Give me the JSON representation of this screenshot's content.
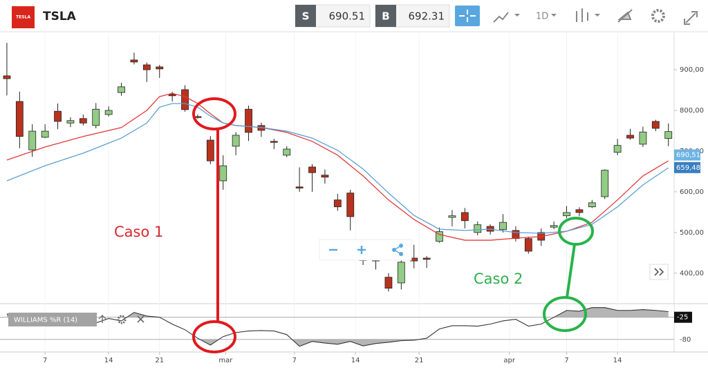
{
  "header": {
    "logo": "TESLA",
    "symbol": "TSLA",
    "sell_label": "S",
    "sell": "690.51",
    "buy_label": "B",
    "buy": "692.31",
    "timeframe": "1D"
  },
  "annotations": [
    "Caso 1",
    "Caso 2"
  ],
  "chart_data": {
    "type": "candlestick",
    "xlim": [
      -0.54,
      52.45
    ],
    "xticks": [
      {
        "value": 3,
        "label": "7"
      },
      {
        "value": 8,
        "label": "14"
      },
      {
        "value": 12,
        "label": "21"
      },
      {
        "value": 17.2,
        "label": "mar"
      },
      {
        "value": 22.6,
        "label": "7"
      },
      {
        "value": 27.4,
        "label": "14"
      },
      {
        "value": 32.4,
        "label": "21"
      },
      {
        "value": 39.5,
        "label": "apr"
      },
      {
        "value": 44,
        "label": "7"
      },
      {
        "value": 48,
        "label": "14"
      }
    ],
    "ylim": [
      325,
      990
    ],
    "yticks": [
      {
        "value": 900,
        "label": "900,00"
      },
      {
        "value": 800,
        "label": "800,00"
      },
      {
        "value": 700,
        "label": "700,00"
      },
      {
        "value": 600,
        "label": "600,00"
      },
      {
        "value": 500,
        "label": "500,00"
      },
      {
        "value": 400,
        "label": "400,00"
      }
    ],
    "up_color": "#92cc85",
    "down_color": "#b8321e",
    "open": [
      885,
      822,
      703,
      734,
      798,
      769,
      780,
      763,
      790,
      844,
      924,
      912,
      907,
      840,
      851,
      785,
      727,
      627,
      712,
      803,
      763,
      724,
      690,
      612,
      661,
      641,
      580,
      597,
      441,
      441,
      390,
      376,
      437,
      437,
      478,
      537,
      549,
      500,
      515,
      507,
      505,
      485,
      500,
      513,
      541,
      556,
      563,
      588,
      697,
      739,
      717,
      773,
      731
    ],
    "high": [
      966,
      846,
      766,
      766,
      817,
      783,
      790,
      818,
      810,
      868,
      942,
      918,
      912,
      846,
      862,
      790,
      737,
      690,
      747,
      812,
      770,
      730,
      712,
      660,
      668,
      655,
      595,
      605,
      460,
      478,
      400,
      445,
      470,
      442,
      512,
      555,
      560,
      527,
      520,
      545,
      515,
      490,
      510,
      527,
      565,
      562,
      580,
      655,
      730,
      755,
      760,
      777,
      768
    ],
    "low": [
      837,
      707,
      686,
      732,
      754,
      759,
      763,
      756,
      785,
      836,
      913,
      870,
      880,
      822,
      797,
      780,
      668,
      605,
      690,
      725,
      735,
      705,
      685,
      600,
      600,
      620,
      553,
      505,
      420,
      409,
      355,
      360,
      412,
      413,
      475,
      515,
      510,
      493,
      495,
      500,
      478,
      448,
      467,
      508,
      535,
      540,
      560,
      582,
      690,
      728,
      710,
      749,
      712
    ],
    "close": [
      878,
      736,
      749,
      749,
      773,
      775,
      769,
      803,
      800,
      858,
      919,
      900,
      902,
      836,
      802,
      783,
      676,
      664,
      739,
      746,
      751,
      722,
      705,
      609,
      647,
      636,
      563,
      539,
      431,
      430,
      363,
      427,
      430,
      434,
      502,
      541,
      529,
      519,
      503,
      525,
      485,
      454,
      481,
      517,
      549,
      549,
      573,
      653,
      714,
      732,
      747,
      756,
      748
    ],
    "overlays": [
      {
        "color": "#e0393a",
        "x": [
          0,
          3,
          6,
          9,
          11,
          12,
          13,
          14,
          15,
          16,
          17,
          18,
          20,
          22,
          24,
          26,
          28,
          30,
          32,
          34,
          36,
          38,
          40,
          42,
          44,
          46,
          48,
          50,
          52
        ],
        "values": [
          678,
          710,
          736,
          758,
          800,
          834,
          842,
          834,
          817,
          792,
          769,
          763,
          758,
          746,
          724,
          690,
          639,
          580,
          532,
          495,
          481,
          481,
          486,
          490,
          503,
          525,
          580,
          639,
          676
        ]
      },
      {
        "color": "#5a9fd4",
        "x": [
          0,
          3,
          6,
          9,
          11,
          12,
          13,
          14,
          15,
          16,
          17,
          18,
          20,
          22,
          24,
          26,
          28,
          30,
          32,
          34,
          36,
          38,
          40,
          42,
          44,
          46,
          48,
          50,
          52
        ],
        "values": [
          627,
          664,
          695,
          732,
          769,
          808,
          817,
          817,
          808,
          786,
          769,
          763,
          758,
          749,
          732,
          702,
          656,
          597,
          542,
          508,
          505,
          508,
          500,
          498,
          503,
          520,
          563,
          617,
          659
        ]
      }
    ],
    "price_tags": [
      {
        "value": 690.51,
        "label": "690,51",
        "color": "#6db3e4"
      },
      {
        "value": 659.48,
        "label": "659,48",
        "color": "#3a7fbf"
      }
    ],
    "indicator": {
      "label": "WILLIAMS %R (14)",
      "color": "#333333",
      "values": [
        -16,
        -42,
        -30,
        -34,
        -28,
        -37,
        -25,
        -39,
        -28,
        -34,
        -13,
        -22,
        -25,
        -42,
        -56,
        -77,
        -94,
        -73,
        -63,
        -59,
        -58,
        -59,
        -68,
        -97,
        -85,
        -89,
        -92,
        -85,
        -96,
        -90,
        -87,
        -83,
        -82,
        -77,
        -54,
        -46,
        -46,
        -47,
        -42,
        -34,
        -30,
        -47,
        -42,
        -25,
        -8,
        -10,
        -1,
        -1,
        -8,
        -8,
        -6,
        -8,
        -11
      ],
      "ylim": [
        -106,
        7
      ],
      "yticks": [
        -25,
        -80
      ]
    }
  }
}
